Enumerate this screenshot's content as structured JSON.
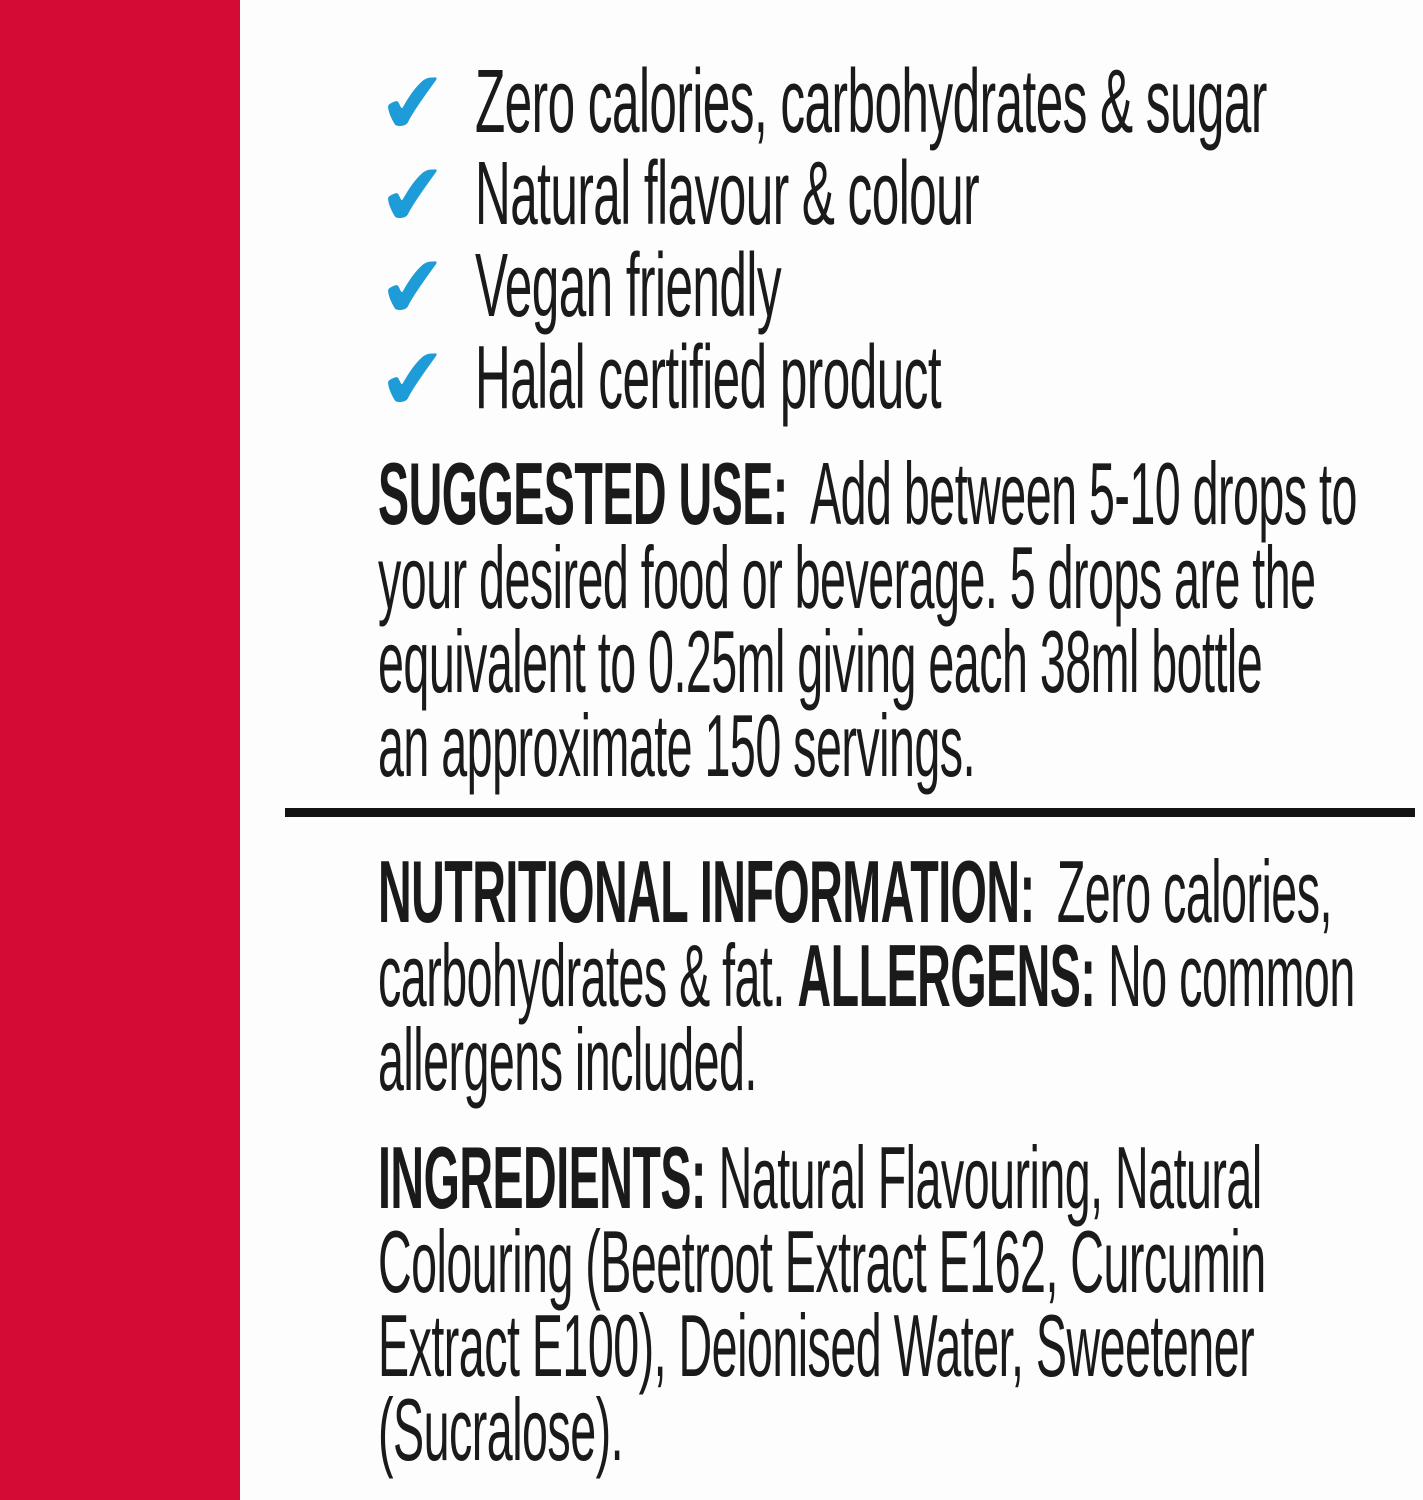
{
  "colors": {
    "red_bar": "#d40b35",
    "check_blue": "#1e9cd7",
    "text": "#1a1a1a",
    "rule": "#131313"
  },
  "checklist": {
    "check_icon": "✔",
    "items": [
      "Zero calories, carbohydrates & sugar",
      "Natural flavour & colour",
      "Vegan friendly",
      "Halal certified product"
    ]
  },
  "suggested_use": {
    "heading": "SUGGESTED USE:",
    "line1_rest": "Add between 5-10 drops to",
    "line2": "your desired food or beverage. 5 drops are the",
    "line3": "equivalent to 0.25ml giving each 38ml bottle",
    "line4": "an approximate 150 servings."
  },
  "nutrition": {
    "heading": "NUTRITIONAL INFORMATION:",
    "line1_rest": "Zero calories,",
    "line2_pre": "carbohydrates & fat.",
    "allergens_heading": "ALLERGENS:",
    "line2_rest": "No common",
    "line3": "allergens included."
  },
  "ingredients": {
    "heading": "INGREDIENTS:",
    "line1_rest": "Natural Flavouring, Natural",
    "line2": "Colouring (Beetroot Extract E162, Curcumin",
    "line3": "Extract E100), Deionised Water, Sweetener",
    "line4": "(Sucralose)."
  }
}
